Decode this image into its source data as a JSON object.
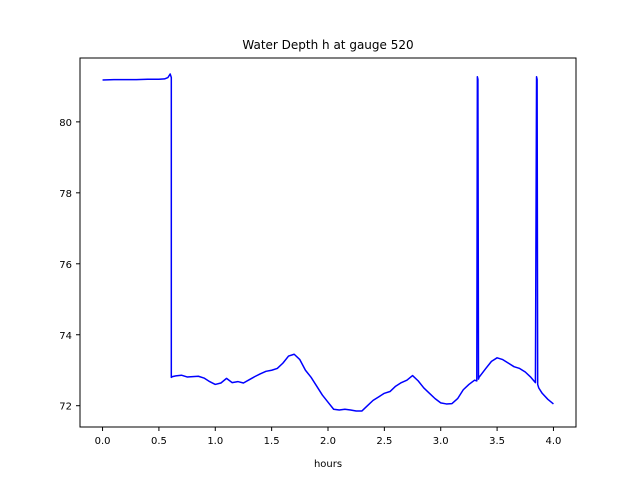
{
  "chart_data": {
    "type": "line",
    "title": "Water Depth h at gauge 520",
    "xlabel": "hours",
    "ylabel": "",
    "xlim": [
      -0.2,
      4.2
    ],
    "ylim": [
      71.4,
      81.8
    ],
    "xticks": [
      0.0,
      0.5,
      1.0,
      1.5,
      2.0,
      2.5,
      3.0,
      3.5,
      4.0
    ],
    "xtick_labels": [
      "0.0",
      "0.5",
      "1.0",
      "1.5",
      "2.0",
      "2.5",
      "3.0",
      "3.5",
      "4.0"
    ],
    "yticks": [
      72,
      74,
      76,
      78,
      80
    ],
    "ytick_labels": [
      "72",
      "74",
      "76",
      "78",
      "80"
    ],
    "grid": false,
    "series": [
      {
        "color": "#0000ff",
        "x": [
          0.0,
          0.1,
          0.2,
          0.3,
          0.4,
          0.5,
          0.55,
          0.58,
          0.6,
          0.61,
          0.61,
          0.62,
          0.65,
          0.7,
          0.75,
          0.8,
          0.85,
          0.9,
          0.95,
          1.0,
          1.05,
          1.1,
          1.15,
          1.2,
          1.25,
          1.3,
          1.35,
          1.4,
          1.45,
          1.5,
          1.55,
          1.6,
          1.65,
          1.7,
          1.75,
          1.8,
          1.85,
          1.9,
          1.95,
          2.0,
          2.05,
          2.1,
          2.15,
          2.2,
          2.25,
          2.3,
          2.35,
          2.4,
          2.45,
          2.5,
          2.55,
          2.6,
          2.65,
          2.7,
          2.75,
          2.8,
          2.85,
          2.9,
          2.95,
          3.0,
          3.05,
          3.1,
          3.15,
          3.2,
          3.25,
          3.3,
          3.32,
          3.325,
          3.33,
          3.335,
          3.34,
          3.4,
          3.45,
          3.5,
          3.55,
          3.6,
          3.65,
          3.7,
          3.75,
          3.8,
          3.84,
          3.85,
          3.855,
          3.86,
          3.87,
          3.9,
          3.95,
          4.0
        ],
        "y": [
          81.18,
          81.19,
          81.19,
          81.19,
          81.2,
          81.2,
          81.21,
          81.25,
          81.35,
          81.25,
          72.8,
          72.82,
          72.84,
          72.86,
          72.81,
          72.82,
          72.83,
          72.78,
          72.68,
          72.6,
          72.64,
          72.77,
          72.65,
          72.68,
          72.64,
          72.73,
          72.82,
          72.9,
          72.97,
          73.0,
          73.05,
          73.2,
          73.4,
          73.45,
          73.3,
          73.0,
          72.8,
          72.55,
          72.3,
          72.1,
          71.9,
          71.88,
          71.9,
          71.88,
          71.85,
          71.85,
          72.0,
          72.15,
          72.25,
          72.35,
          72.4,
          72.55,
          72.65,
          72.72,
          72.85,
          72.7,
          72.5,
          72.35,
          72.2,
          72.08,
          72.05,
          72.06,
          72.2,
          72.45,
          72.6,
          72.72,
          72.7,
          81.27,
          81.2,
          72.75,
          72.8,
          73.05,
          73.25,
          73.35,
          73.3,
          73.2,
          73.1,
          73.05,
          72.95,
          72.8,
          72.65,
          81.27,
          81.2,
          72.6,
          72.5,
          72.35,
          72.18,
          72.05
        ]
      }
    ]
  }
}
